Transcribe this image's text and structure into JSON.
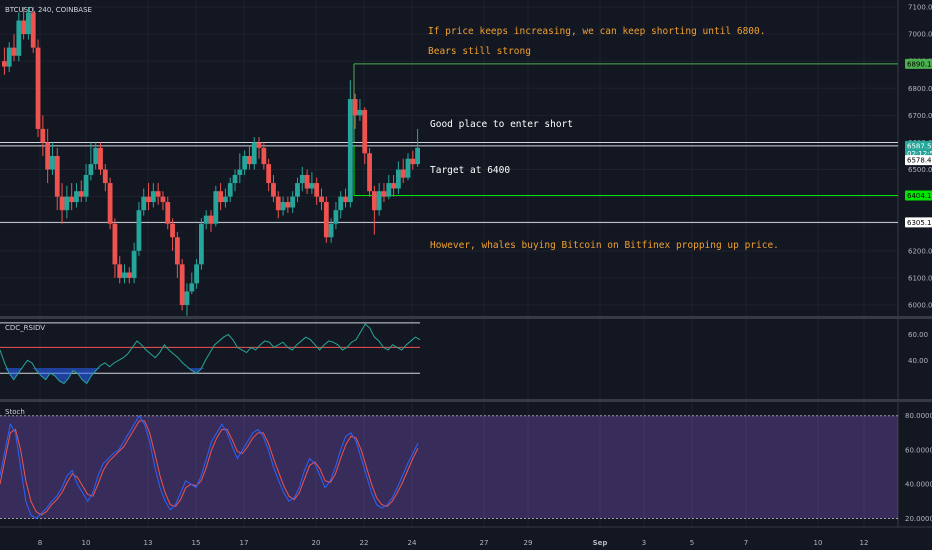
{
  "header": {
    "symbol": "BTCUSD, 240, COINBASE"
  },
  "annotations": [
    {
      "id": "note-keep-shorting",
      "text": "If price keeps increasing, we can keep shorting until 6800.",
      "color": "#f0a030"
    },
    {
      "id": "note-bears",
      "text": "Bears still strong",
      "color": "#f0a030"
    },
    {
      "id": "note-enter-short",
      "text": "Good place to enter short",
      "color": "#ffffff"
    },
    {
      "id": "note-target",
      "text": "Target at 6400",
      "color": "#ffffff"
    },
    {
      "id": "note-whales",
      "text": "However, whales buying Bitcoin on Bitfinex propping up price.",
      "color": "#f0a030"
    }
  ],
  "price_badges": [
    {
      "label": "6890.16",
      "value": 6890.16,
      "bg": "#4caf50",
      "fg": "#000000"
    },
    {
      "label": "6587.50",
      "value": 6587.5,
      "bg": "#26a69a",
      "fg": "#ffffff"
    },
    {
      "label": "02:12:50",
      "value": 6560,
      "bg": "#26a69a",
      "fg": "#ffffff"
    },
    {
      "label": "6578.48",
      "value": 6535,
      "bg": "#ffffff",
      "fg": "#000000"
    },
    {
      "label": "6404.17",
      "value": 6404.17,
      "bg": "#00e600",
      "fg": "#000000"
    },
    {
      "label": "6305.15",
      "value": 6305.15,
      "bg": "#ffffff",
      "fg": "#000000"
    }
  ],
  "panels": {
    "rsi": {
      "name": "CDC_RSIDV",
      "ticks": [
        "60.00",
        "40.00"
      ]
    },
    "stoch": {
      "name": "Stoch",
      "ticks": [
        "80.0000",
        "60.0000",
        "40.0000",
        "20.0000"
      ]
    }
  },
  "chart_data": {
    "type": "candlestick",
    "price_axis": {
      "min": 5950,
      "max": 7100,
      "ticks": [
        "7100.00",
        "7000.00",
        "6900.00",
        "6800.00",
        "6700.00",
        "6600.00",
        "6500.00",
        "6400.00",
        "6300.00",
        "6200.00",
        "6100.00",
        "6000.00"
      ]
    },
    "x_axis": {
      "ticks": [
        "8",
        "10",
        "13",
        "15",
        "17",
        "20",
        "22",
        "24",
        "27",
        "29",
        "Sep",
        "3",
        "5",
        "7",
        "10",
        "12"
      ]
    },
    "levels": [
      {
        "name": "resistance-6800",
        "value": 6890.16,
        "color": "#4caf50"
      },
      {
        "name": "entry-line-1",
        "value": 6600,
        "color": "#d1d4dc"
      },
      {
        "name": "entry-line-2",
        "value": 6587.5,
        "color": "#d1d4dc"
      },
      {
        "name": "target-6400",
        "value": 6404.17,
        "color": "#00e600"
      },
      {
        "name": "support-6305",
        "value": 6305.15,
        "color": "#d1d4dc"
      }
    ],
    "candles": [
      [
        6900,
        6880,
        6950,
        6850
      ],
      [
        6880,
        6950,
        6970,
        6860
      ],
      [
        6950,
        6920,
        7000,
        6900
      ],
      [
        6920,
        7050,
        7080,
        6900
      ],
      [
        7050,
        7000,
        7100,
        6980
      ],
      [
        7000,
        7080,
        7100,
        6980
      ],
      [
        7080,
        6950,
        7100,
        6930
      ],
      [
        6950,
        6650,
        6980,
        6620
      ],
      [
        6650,
        6600,
        6700,
        6550
      ],
      [
        6600,
        6500,
        6650,
        6450
      ],
      [
        6500,
        6550,
        6600,
        6480
      ],
      [
        6550,
        6400,
        6580,
        6350
      ],
      [
        6400,
        6350,
        6450,
        6300
      ],
      [
        6350,
        6400,
        6440,
        6320
      ],
      [
        6400,
        6380,
        6450,
        6350
      ],
      [
        6380,
        6420,
        6450,
        6360
      ],
      [
        6420,
        6400,
        6460,
        6380
      ],
      [
        6400,
        6480,
        6520,
        6380
      ],
      [
        6480,
        6520,
        6600,
        6460
      ],
      [
        6520,
        6580,
        6600,
        6500
      ],
      [
        6580,
        6500,
        6600,
        6480
      ],
      [
        6500,
        6450,
        6520,
        6420
      ],
      [
        6450,
        6300,
        6470,
        6280
      ],
      [
        6300,
        6150,
        6320,
        6100
      ],
      [
        6150,
        6100,
        6180,
        6080
      ],
      [
        6100,
        6120,
        6150,
        6080
      ],
      [
        6120,
        6100,
        6140,
        6080
      ],
      [
        6100,
        6200,
        6230,
        6080
      ],
      [
        6200,
        6350,
        6380,
        6180
      ],
      [
        6350,
        6400,
        6430,
        6330
      ],
      [
        6400,
        6380,
        6450,
        6350
      ],
      [
        6380,
        6420,
        6450,
        6360
      ],
      [
        6420,
        6400,
        6450,
        6370
      ],
      [
        6400,
        6380,
        6420,
        6350
      ],
      [
        6380,
        6300,
        6400,
        6280
      ],
      [
        6300,
        6250,
        6320,
        6200
      ],
      [
        6250,
        6150,
        6270,
        6100
      ],
      [
        6150,
        6000,
        6170,
        5980
      ],
      [
        6000,
        6050,
        6080,
        5960
      ],
      [
        6050,
        6080,
        6120,
        6040
      ],
      [
        6080,
        6150,
        6170,
        6060
      ],
      [
        6150,
        6300,
        6320,
        6130
      ],
      [
        6300,
        6330,
        6350,
        6280
      ],
      [
        6330,
        6300,
        6350,
        6270
      ],
      [
        6300,
        6420,
        6440,
        6290
      ],
      [
        6420,
        6380,
        6450,
        6350
      ],
      [
        6380,
        6400,
        6430,
        6360
      ],
      [
        6400,
        6450,
        6470,
        6380
      ],
      [
        6450,
        6480,
        6500,
        6420
      ],
      [
        6480,
        6500,
        6560,
        6450
      ],
      [
        6500,
        6550,
        6570,
        6480
      ],
      [
        6550,
        6520,
        6590,
        6500
      ],
      [
        6520,
        6600,
        6620,
        6500
      ],
      [
        6600,
        6580,
        6620,
        6540
      ],
      [
        6580,
        6520,
        6600,
        6500
      ],
      [
        6520,
        6450,
        6540,
        6420
      ],
      [
        6450,
        6400,
        6480,
        6380
      ],
      [
        6400,
        6350,
        6420,
        6320
      ],
      [
        6350,
        6380,
        6400,
        6330
      ],
      [
        6380,
        6360,
        6400,
        6340
      ],
      [
        6360,
        6400,
        6420,
        6340
      ],
      [
        6400,
        6450,
        6470,
        6380
      ],
      [
        6450,
        6480,
        6510,
        6420
      ],
      [
        6480,
        6430,
        6500,
        6410
      ],
      [
        6430,
        6450,
        6490,
        6410
      ],
      [
        6450,
        6400,
        6470,
        6370
      ],
      [
        6400,
        6380,
        6430,
        6350
      ],
      [
        6380,
        6250,
        6400,
        6230
      ],
      [
        6250,
        6300,
        6320,
        6230
      ],
      [
        6300,
        6350,
        6380,
        6280
      ],
      [
        6350,
        6400,
        6420,
        6320
      ],
      [
        6400,
        6380,
        6430,
        6360
      ],
      [
        6380,
        6760,
        6830,
        6360
      ],
      [
        6760,
        6700,
        6780,
        6650
      ],
      [
        6700,
        6720,
        6760,
        6680
      ],
      [
        6720,
        6560,
        6730,
        6520
      ],
      [
        6560,
        6420,
        6580,
        6400
      ],
      [
        6420,
        6350,
        6440,
        6260
      ],
      [
        6350,
        6420,
        6450,
        6330
      ],
      [
        6420,
        6400,
        6450,
        6380
      ],
      [
        6400,
        6450,
        6480,
        6390
      ],
      [
        6450,
        6430,
        6480,
        6400
      ],
      [
        6430,
        6500,
        6530,
        6410
      ],
      [
        6500,
        6470,
        6540,
        6450
      ],
      [
        6470,
        6540,
        6560,
        6460
      ],
      [
        6540,
        6520,
        6570,
        6500
      ],
      [
        6520,
        6580,
        6650,
        6510
      ]
    ],
    "rsi_panel": {
      "range": [
        10,
        72
      ],
      "upper_level": 50,
      "lower_level": 30,
      "series": [
        48,
        38,
        30,
        25,
        30,
        35,
        40,
        38,
        32,
        28,
        25,
        30,
        28,
        24,
        22,
        26,
        32,
        30,
        25,
        22,
        28,
        32,
        36,
        38,
        35,
        38,
        40,
        42,
        45,
        50,
        55,
        52,
        48,
        45,
        42,
        46,
        52,
        48,
        45,
        42,
        38,
        35,
        32,
        30,
        33,
        40,
        46,
        52,
        55,
        58,
        60,
        56,
        50,
        48,
        46,
        50,
        48,
        52,
        55,
        54,
        50,
        52,
        54,
        50,
        48,
        52,
        55,
        58,
        56,
        52,
        48,
        52,
        55,
        54,
        52,
        48,
        50,
        54,
        56,
        62,
        68,
        65,
        58,
        55,
        50,
        48,
        52,
        50,
        48,
        52,
        55,
        58,
        56
      ]
    },
    "stoch_panel": {
      "range": [
        15,
        88
      ],
      "upper_level": 80,
      "lower_level": 20,
      "k": [
        45,
        60,
        75,
        70,
        50,
        30,
        22,
        20,
        23,
        26,
        30,
        33,
        38,
        45,
        48,
        40,
        35,
        30,
        35,
        45,
        52,
        55,
        58,
        60,
        65,
        70,
        75,
        80,
        75,
        65,
        50,
        38,
        30,
        25,
        28,
        35,
        42,
        40,
        38,
        45,
        55,
        65,
        70,
        75,
        70,
        62,
        55,
        60,
        65,
        70,
        72,
        68,
        60,
        50,
        42,
        35,
        30,
        32,
        38,
        48,
        55,
        52,
        45,
        38,
        42,
        50,
        60,
        68,
        70,
        65,
        55,
        45,
        35,
        28,
        26,
        28,
        32,
        38,
        45,
        52,
        58,
        64
      ],
      "d": [
        40,
        55,
        70,
        72,
        60,
        42,
        30,
        24,
        22,
        24,
        28,
        31,
        35,
        41,
        46,
        44,
        39,
        34,
        33,
        40,
        48,
        53,
        56,
        59,
        62,
        67,
        72,
        77,
        77,
        70,
        58,
        45,
        35,
        28,
        27,
        31,
        38,
        40,
        39,
        42,
        50,
        60,
        67,
        72,
        72,
        66,
        59,
        58,
        62,
        67,
        70,
        70,
        64,
        55,
        47,
        39,
        33,
        31,
        35,
        43,
        51,
        53,
        49,
        42,
        41,
        46,
        55,
        63,
        68,
        67,
        60,
        50,
        40,
        32,
        28,
        27,
        30,
        35,
        41,
        48,
        55,
        61
      ]
    },
    "colors": {
      "up": "#26a69a",
      "down": "#ef5350",
      "rsi_line": "#26a69a",
      "rsi_low_fill": "#2962ff",
      "stoch_k": "#2962ff",
      "stoch_d": "#ef5350",
      "stoch_band": "#7e57c2"
    }
  }
}
